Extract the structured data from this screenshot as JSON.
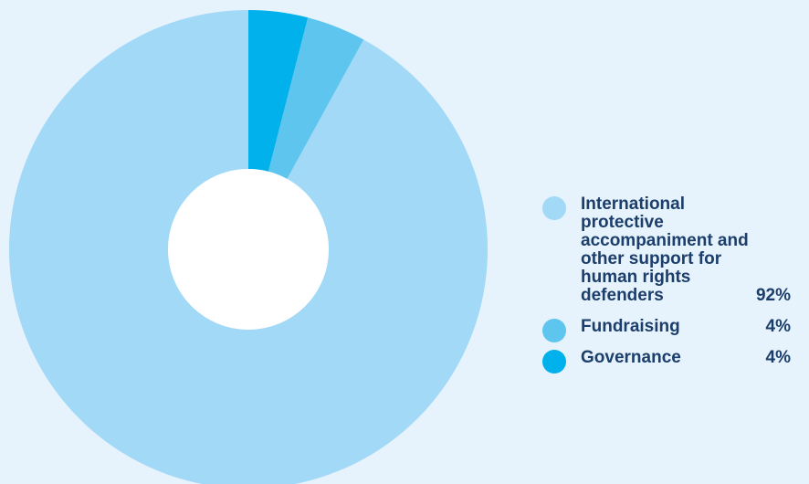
{
  "chart_data": {
    "type": "pie",
    "title": "",
    "slices": [
      {
        "label": "International protective accompaniment and other support for human rights defenders",
        "value": 92,
        "display": "92%",
        "color": "#a2d9f7"
      },
      {
        "label": "Fundraising",
        "value": 4,
        "display": "4%",
        "color": "#5ec5ef"
      },
      {
        "label": "Governance",
        "value": 4,
        "display": "4%",
        "color": "#00b1eb"
      }
    ],
    "legend_position": "right"
  }
}
